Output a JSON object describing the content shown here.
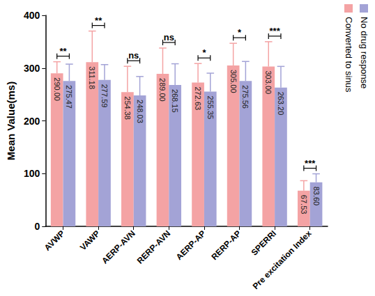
{
  "chart_data": {
    "type": "bar",
    "categories": [
      "AVWP",
      "VAWP",
      "AERP-AVN",
      "RERP-AVN",
      "AERP-AP",
      "RERP-AP",
      "SPERRI",
      "Pre excitation Index"
    ],
    "series": [
      {
        "name": "Converted to sinus",
        "color": "#f4a3a4",
        "values": [
          290.0,
          311.18,
          254.38,
          289.0,
          272.63,
          305.0,
          303.0,
          67.53
        ],
        "value_labels": [
          "290.00",
          "311.18",
          "254.38",
          "289.00",
          "272.63",
          "305.00",
          "303.00",
          "67.53"
        ],
        "errors": [
          22,
          59,
          49,
          49,
          36,
          42,
          47,
          19
        ]
      },
      {
        "name": "No drug response",
        "color": "#a3a3d6",
        "values": [
          275.47,
          277.59,
          248.03,
          268.15,
          255.35,
          275.56,
          263.2,
          83.6
        ],
        "value_labels": [
          "275.47",
          "277.59",
          "248.03",
          "268.15",
          "255.35",
          "275.56",
          "263.20",
          "83.60"
        ],
        "errors": [
          32,
          29,
          36,
          40,
          35,
          37,
          40,
          16
        ]
      }
    ],
    "annotations": [
      "**",
      "**",
      "ns",
      "ns",
      "*",
      "*",
      "***",
      "***"
    ],
    "y_label": "Mean Value(ms)",
    "ylim": [
      0,
      400
    ],
    "yticks": [
      0,
      100,
      200,
      300,
      400
    ],
    "grid": false,
    "legend": "upper right",
    "data_labels": true
  }
}
